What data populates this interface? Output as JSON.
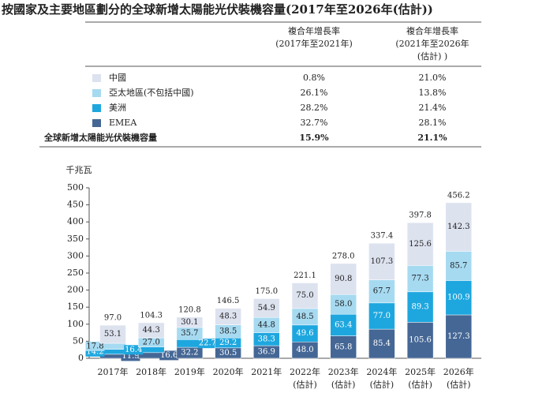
{
  "chart_data": {
    "type": "stacked-bar",
    "title": "按國家及主要地區劃分的全球新增太陽能光伏裝機容量(2017年至2026年(估計))",
    "table_headers": [
      [
        "複合年增長率",
        "(2017年至2021年)"
      ],
      [
        "複合年增長率",
        "(2021年至2026年",
        "(估計) )"
      ]
    ],
    "total_name": "全球新增太陽能光伏裝機容量",
    "total_cagr": [
      "15.9%",
      "21.1%"
    ],
    "y_unit": "千兆瓦",
    "categories": [
      "2017年",
      "2018年",
      "2019年",
      "2020年",
      "2021年",
      "2022年",
      "2023年",
      "2024年",
      "2025年",
      "2026年"
    ],
    "category_notes": [
      null,
      null,
      null,
      null,
      null,
      "(估計)",
      "(估計)",
      "(估計)",
      "(估計)",
      "(估計)"
    ],
    "series": [
      {
        "name": "中國",
        "color": "#dde2ef",
        "cagr": [
          "0.8%",
          "21.0%"
        ],
        "values": [
          53.1,
          44.3,
          30.1,
          48.3,
          54.9,
          75.0,
          90.8,
          107.3,
          125.6,
          142.3
        ],
        "value_labels": [
          "53.1",
          "44.3",
          "30.1",
          "48.3",
          "54.9",
          "75.0",
          "90.8",
          "107.3",
          "125.6",
          "142.3"
        ]
      },
      {
        "name": "亞太地區(不包括中國)",
        "color": "#a6daf1",
        "cagr": [
          "26.1%",
          "13.8%"
        ],
        "values": [
          17.8,
          27.0,
          35.7,
          38.5,
          44.8,
          48.5,
          58.0,
          67.7,
          77.3,
          85.7
        ],
        "value_labels": [
          "17.8",
          "27.0",
          "35.7",
          "38.5",
          "44.8",
          "48.5",
          "58.0",
          "67.7",
          "77.3",
          "85.7"
        ]
      },
      {
        "name": "美洲",
        "color": "#1ea7df",
        "cagr": [
          "28.2%",
          "21.4%"
        ],
        "values": [
          14.2,
          16.4,
          22.7,
          29.2,
          38.3,
          49.6,
          63.4,
          77.0,
          89.3,
          100.9
        ],
        "value_labels": [
          "14.2",
          "16.4",
          "22.7",
          "29.2",
          "38.3",
          "49.6",
          "63.4",
          "77.0",
          "89.3",
          "100.9"
        ]
      },
      {
        "name": "EMEA",
        "color": "#456795",
        "cagr": [
          "32.7%",
          "28.1%"
        ],
        "values": [
          11.9,
          16.6,
          32.2,
          30.5,
          36.9,
          48.0,
          65.8,
          85.4,
          105.6,
          127.3
        ],
        "value_labels": [
          "11.9",
          "16.6",
          "32.2",
          "30.5",
          "36.9",
          "48.0",
          "65.8",
          "85.4",
          "105.6",
          "127.3"
        ]
      }
    ],
    "totals": [
      97.0,
      104.3,
      120.8,
      146.5,
      175.0,
      221.1,
      278.0,
      337.4,
      397.8,
      456.2
    ],
    "total_labels": [
      "97.0",
      "104.3",
      "120.8",
      "146.5",
      "175.0",
      "221.1",
      "278.0",
      "337.4",
      "397.8",
      "456.2"
    ],
    "ylim": [
      0,
      500
    ],
    "yticks": [
      0,
      50,
      100,
      150,
      200,
      250,
      300,
      350,
      400,
      450,
      500
    ]
  }
}
